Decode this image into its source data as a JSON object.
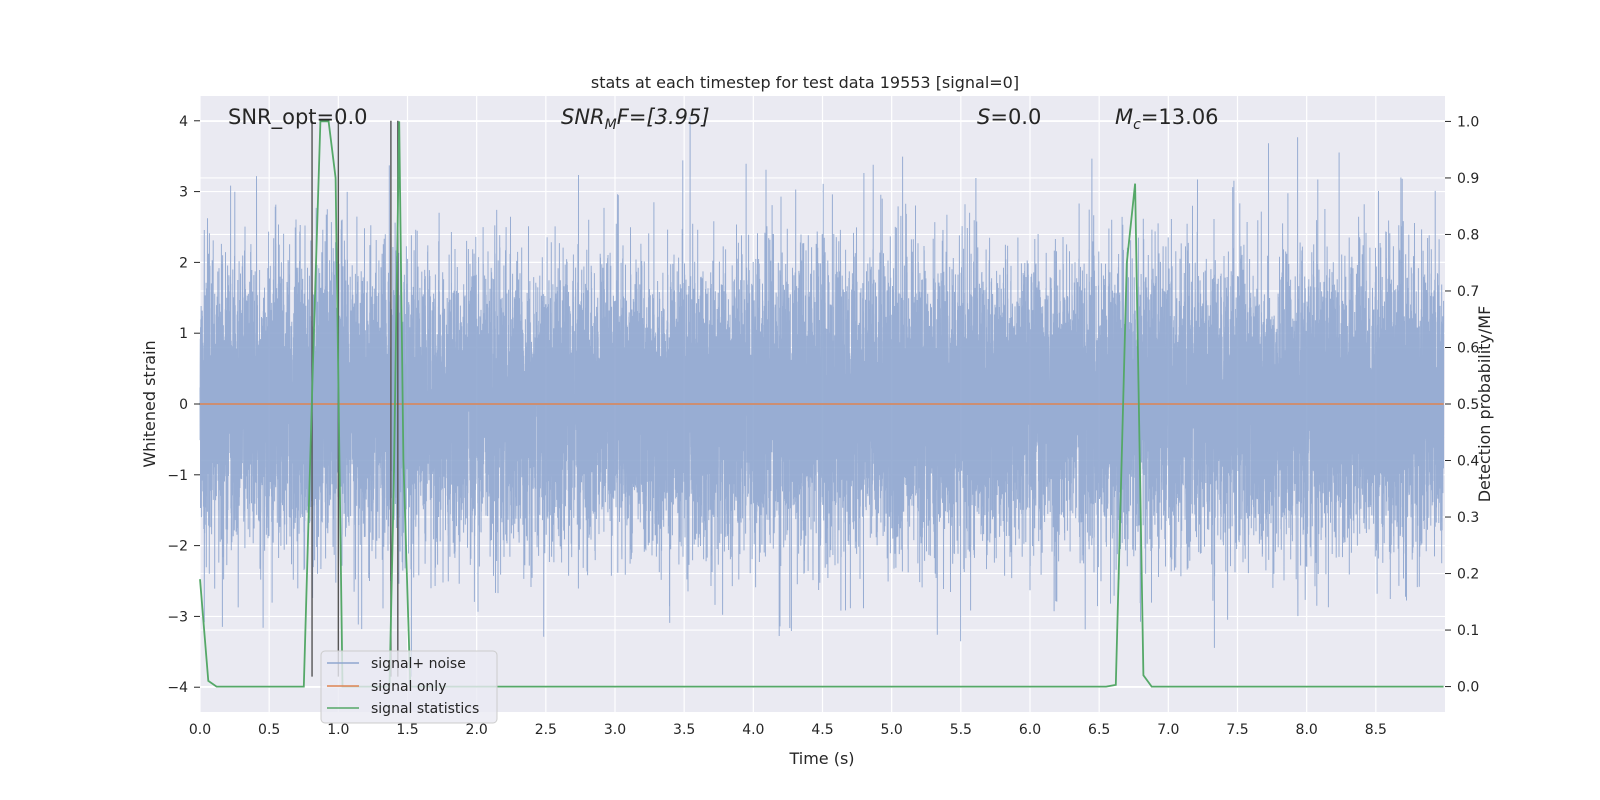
{
  "chart_data": {
    "type": "line",
    "title": "stats at each timestep for test data 19553 [signal=0]",
    "xlabel": "Time (s)",
    "ylabel_left": "Whitened strain",
    "ylabel_right": "Detection probability/MF",
    "xlim": [
      0,
      9.0
    ],
    "ylim_left": [
      -4.35,
      4.35
    ],
    "ylim_right": [
      -0.045,
      1.045
    ],
    "x_ticks": [
      "0.0",
      "0.5",
      "1.0",
      "1.5",
      "2.0",
      "2.5",
      "3.0",
      "3.5",
      "4.0",
      "4.5",
      "5.0",
      "5.5",
      "6.0",
      "6.5",
      "7.0",
      "7.5",
      "8.0",
      "8.5"
    ],
    "y_ticks_left": [
      "−4",
      "−3",
      "−2",
      "−1",
      "0",
      "1",
      "2",
      "3",
      "4"
    ],
    "y_ticks_right": [
      "0.0",
      "0.1",
      "0.2",
      "0.3",
      "0.4",
      "0.5",
      "0.6",
      "0.7",
      "0.8",
      "0.9",
      "1.0"
    ],
    "grid": true,
    "legend_position": "lower-left",
    "colors": {
      "signal_noise": "#8fa6cf",
      "signal_only": "#dd8452",
      "signal_statistics": "#55a868",
      "markers": "#555555",
      "background": "#eaeaf2",
      "grid": "#ffffff"
    },
    "annotations": {
      "snr_opt": "SNR_opt=0.0",
      "snr_mf_main": "SNR",
      "snr_mf_sub": "M",
      "snr_mf_rest": "F=[3.95]",
      "s_main": "S",
      "s_rest": "=0.0",
      "mc_main": "M",
      "mc_sub": "c",
      "mc_rest": "=13.06"
    },
    "series": [
      {
        "name": "signal+ noise",
        "axis": "left",
        "sample_rate_hz": 2048,
        "amplitude_std": 1.0,
        "x_range": [
          0,
          8.99
        ]
      },
      {
        "name": "signal only",
        "axis": "left",
        "x": [
          0,
          8.99
        ],
        "y": [
          0,
          0
        ]
      },
      {
        "name": "signal statistics",
        "axis": "right",
        "x": [
          0,
          0.06,
          0.12,
          0.75,
          0.82,
          0.87,
          0.93,
          0.98,
          1.03,
          1.37,
          1.4,
          1.44,
          1.47,
          1.52,
          6.55,
          6.62,
          6.7,
          6.76,
          6.82,
          6.88,
          8.99
        ],
        "y": [
          0.19,
          0.01,
          0.0,
          0.0,
          0.6,
          1.0,
          1.0,
          0.9,
          0.0,
          0.0,
          0.35,
          1.0,
          0.4,
          0.0,
          0.0,
          0.003,
          0.75,
          0.89,
          0.02,
          0.0,
          0.0
        ]
      }
    ],
    "marker_lines_x": [
      0.81,
      1.0,
      1.38,
      1.43
    ]
  }
}
